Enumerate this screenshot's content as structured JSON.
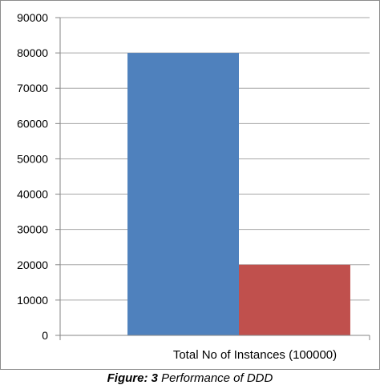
{
  "chart_data": {
    "type": "bar",
    "categories": [
      "Total No of Instances (100000)"
    ],
    "series": [
      {
        "values": [
          80000
        ],
        "color": "#4f81bd"
      },
      {
        "values": [
          20000
        ],
        "color": "#c0504d"
      }
    ],
    "ylim": [
      0,
      90000
    ],
    "yticks": [
      0,
      10000,
      20000,
      30000,
      40000,
      50000,
      60000,
      70000,
      80000,
      90000
    ],
    "ytick_labels": [
      "0",
      "10000",
      "20000",
      "30000",
      "40000",
      "50000",
      "60000",
      "70000",
      "80000",
      "90000"
    ],
    "grid": true,
    "legend": "none"
  },
  "caption": {
    "label": "Figure: 3",
    "text": " Performance of DDD"
  }
}
